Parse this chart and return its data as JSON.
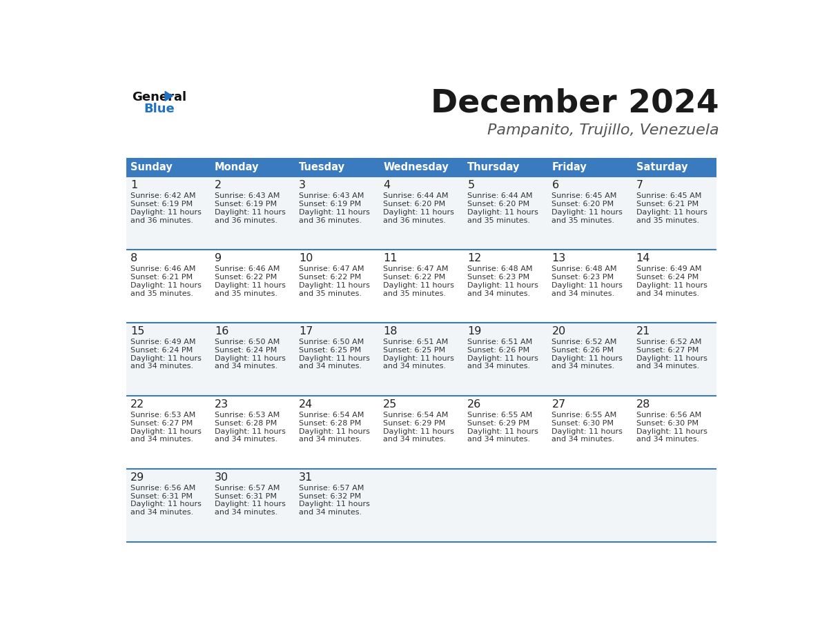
{
  "title": "December 2024",
  "subtitle": "Pampanito, Trujillo, Venezuela",
  "days_of_week": [
    "Sunday",
    "Monday",
    "Tuesday",
    "Wednesday",
    "Thursday",
    "Friday",
    "Saturday"
  ],
  "header_bg": "#3a7abf",
  "header_text": "#ffffff",
  "row_bg_odd": "#f2f5f8",
  "row_bg_even": "#ffffff",
  "cell_border_color": "#3a7abf",
  "title_color": "#1a1a1a",
  "subtitle_color": "#555555",
  "day_number_color": "#222222",
  "info_color": "#333333",
  "calendar": [
    [
      {
        "day": "1",
        "sunrise": "6:42 AM",
        "sunset": "6:19 PM",
        "daylight_l1": "Daylight: 11 hours",
        "daylight_l2": "and 36 minutes."
      },
      {
        "day": "2",
        "sunrise": "6:43 AM",
        "sunset": "6:19 PM",
        "daylight_l1": "Daylight: 11 hours",
        "daylight_l2": "and 36 minutes."
      },
      {
        "day": "3",
        "sunrise": "6:43 AM",
        "sunset": "6:19 PM",
        "daylight_l1": "Daylight: 11 hours",
        "daylight_l2": "and 36 minutes."
      },
      {
        "day": "4",
        "sunrise": "6:44 AM",
        "sunset": "6:20 PM",
        "daylight_l1": "Daylight: 11 hours",
        "daylight_l2": "and 36 minutes."
      },
      {
        "day": "5",
        "sunrise": "6:44 AM",
        "sunset": "6:20 PM",
        "daylight_l1": "Daylight: 11 hours",
        "daylight_l2": "and 35 minutes."
      },
      {
        "day": "6",
        "sunrise": "6:45 AM",
        "sunset": "6:20 PM",
        "daylight_l1": "Daylight: 11 hours",
        "daylight_l2": "and 35 minutes."
      },
      {
        "day": "7",
        "sunrise": "6:45 AM",
        "sunset": "6:21 PM",
        "daylight_l1": "Daylight: 11 hours",
        "daylight_l2": "and 35 minutes."
      }
    ],
    [
      {
        "day": "8",
        "sunrise": "6:46 AM",
        "sunset": "6:21 PM",
        "daylight_l1": "Daylight: 11 hours",
        "daylight_l2": "and 35 minutes."
      },
      {
        "day": "9",
        "sunrise": "6:46 AM",
        "sunset": "6:22 PM",
        "daylight_l1": "Daylight: 11 hours",
        "daylight_l2": "and 35 minutes."
      },
      {
        "day": "10",
        "sunrise": "6:47 AM",
        "sunset": "6:22 PM",
        "daylight_l1": "Daylight: 11 hours",
        "daylight_l2": "and 35 minutes."
      },
      {
        "day": "11",
        "sunrise": "6:47 AM",
        "sunset": "6:22 PM",
        "daylight_l1": "Daylight: 11 hours",
        "daylight_l2": "and 35 minutes."
      },
      {
        "day": "12",
        "sunrise": "6:48 AM",
        "sunset": "6:23 PM",
        "daylight_l1": "Daylight: 11 hours",
        "daylight_l2": "and 34 minutes."
      },
      {
        "day": "13",
        "sunrise": "6:48 AM",
        "sunset": "6:23 PM",
        "daylight_l1": "Daylight: 11 hours",
        "daylight_l2": "and 34 minutes."
      },
      {
        "day": "14",
        "sunrise": "6:49 AM",
        "sunset": "6:24 PM",
        "daylight_l1": "Daylight: 11 hours",
        "daylight_l2": "and 34 minutes."
      }
    ],
    [
      {
        "day": "15",
        "sunrise": "6:49 AM",
        "sunset": "6:24 PM",
        "daylight_l1": "Daylight: 11 hours",
        "daylight_l2": "and 34 minutes."
      },
      {
        "day": "16",
        "sunrise": "6:50 AM",
        "sunset": "6:24 PM",
        "daylight_l1": "Daylight: 11 hours",
        "daylight_l2": "and 34 minutes."
      },
      {
        "day": "17",
        "sunrise": "6:50 AM",
        "sunset": "6:25 PM",
        "daylight_l1": "Daylight: 11 hours",
        "daylight_l2": "and 34 minutes."
      },
      {
        "day": "18",
        "sunrise": "6:51 AM",
        "sunset": "6:25 PM",
        "daylight_l1": "Daylight: 11 hours",
        "daylight_l2": "and 34 minutes."
      },
      {
        "day": "19",
        "sunrise": "6:51 AM",
        "sunset": "6:26 PM",
        "daylight_l1": "Daylight: 11 hours",
        "daylight_l2": "and 34 minutes."
      },
      {
        "day": "20",
        "sunrise": "6:52 AM",
        "sunset": "6:26 PM",
        "daylight_l1": "Daylight: 11 hours",
        "daylight_l2": "and 34 minutes."
      },
      {
        "day": "21",
        "sunrise": "6:52 AM",
        "sunset": "6:27 PM",
        "daylight_l1": "Daylight: 11 hours",
        "daylight_l2": "and 34 minutes."
      }
    ],
    [
      {
        "day": "22",
        "sunrise": "6:53 AM",
        "sunset": "6:27 PM",
        "daylight_l1": "Daylight: 11 hours",
        "daylight_l2": "and 34 minutes."
      },
      {
        "day": "23",
        "sunrise": "6:53 AM",
        "sunset": "6:28 PM",
        "daylight_l1": "Daylight: 11 hours",
        "daylight_l2": "and 34 minutes."
      },
      {
        "day": "24",
        "sunrise": "6:54 AM",
        "sunset": "6:28 PM",
        "daylight_l1": "Daylight: 11 hours",
        "daylight_l2": "and 34 minutes."
      },
      {
        "day": "25",
        "sunrise": "6:54 AM",
        "sunset": "6:29 PM",
        "daylight_l1": "Daylight: 11 hours",
        "daylight_l2": "and 34 minutes."
      },
      {
        "day": "26",
        "sunrise": "6:55 AM",
        "sunset": "6:29 PM",
        "daylight_l1": "Daylight: 11 hours",
        "daylight_l2": "and 34 minutes."
      },
      {
        "day": "27",
        "sunrise": "6:55 AM",
        "sunset": "6:30 PM",
        "daylight_l1": "Daylight: 11 hours",
        "daylight_l2": "and 34 minutes."
      },
      {
        "day": "28",
        "sunrise": "6:56 AM",
        "sunset": "6:30 PM",
        "daylight_l1": "Daylight: 11 hours",
        "daylight_l2": "and 34 minutes."
      }
    ],
    [
      {
        "day": "29",
        "sunrise": "6:56 AM",
        "sunset": "6:31 PM",
        "daylight_l1": "Daylight: 11 hours",
        "daylight_l2": "and 34 minutes."
      },
      {
        "day": "30",
        "sunrise": "6:57 AM",
        "sunset": "6:31 PM",
        "daylight_l1": "Daylight: 11 hours",
        "daylight_l2": "and 34 minutes."
      },
      {
        "day": "31",
        "sunrise": "6:57 AM",
        "sunset": "6:32 PM",
        "daylight_l1": "Daylight: 11 hours",
        "daylight_l2": "and 34 minutes."
      },
      null,
      null,
      null,
      null
    ]
  ]
}
